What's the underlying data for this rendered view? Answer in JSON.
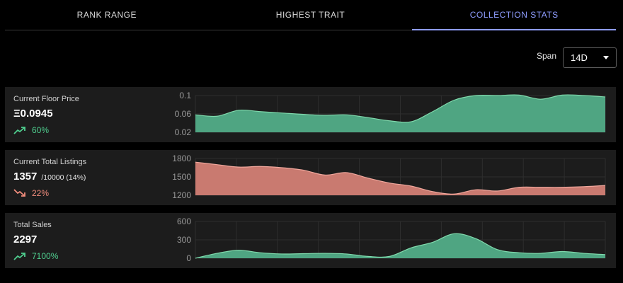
{
  "tabs": [
    {
      "label": "RANK RANGE",
      "active": false
    },
    {
      "label": "HIGHEST TRAIT",
      "active": false
    },
    {
      "label": "COLLECTION STATS",
      "active": true
    }
  ],
  "span": {
    "label": "Span",
    "selected": "14D"
  },
  "colors": {
    "accent": "#8f9dff",
    "up": "#4fcf8f",
    "down": "#f08c7c",
    "green_fill": "#4fa582",
    "red_fill": "#c97a70"
  },
  "stats": [
    {
      "title": "Current Floor Price",
      "value": "Ξ0.0945",
      "sub": "",
      "change": "60%",
      "direction": "up"
    },
    {
      "title": "Current Total Listings",
      "value": "1357",
      "sub": "/10000 (14%)",
      "change": "22%",
      "direction": "down"
    },
    {
      "title": "Total Sales",
      "value": "2297",
      "sub": "",
      "change": "7100%",
      "direction": "up"
    }
  ],
  "chart_data": [
    {
      "type": "area",
      "series": [
        {
          "values": [
            0.058,
            0.055,
            0.068,
            0.065,
            0.062,
            0.059,
            0.057,
            0.058,
            0.052,
            0.045,
            0.043,
            0.065,
            0.09,
            0.1,
            0.1,
            0.101,
            0.092,
            0.101,
            0.1,
            0.097
          ]
        }
      ],
      "yticks": [
        "0.1",
        "0.06",
        "0.02"
      ],
      "ylim": [
        0.02,
        0.1
      ],
      "grid": true
    },
    {
      "type": "area",
      "series": [
        {
          "values": [
            1740,
            1700,
            1660,
            1670,
            1650,
            1610,
            1530,
            1570,
            1480,
            1400,
            1350,
            1260,
            1220,
            1290,
            1270,
            1330,
            1330,
            1330,
            1340,
            1360
          ]
        }
      ],
      "yticks": [
        "1800",
        "1500",
        "1200"
      ],
      "ylim": [
        1200,
        1800
      ],
      "grid": true
    },
    {
      "type": "area",
      "series": [
        {
          "values": [
            0,
            80,
            130,
            90,
            70,
            75,
            80,
            70,
            30,
            30,
            170,
            260,
            400,
            320,
            140,
            90,
            80,
            110,
            80,
            60
          ]
        }
      ],
      "yticks": [
        "600",
        "300",
        "0"
      ],
      "ylim": [
        0,
        600
      ],
      "grid": true
    }
  ]
}
